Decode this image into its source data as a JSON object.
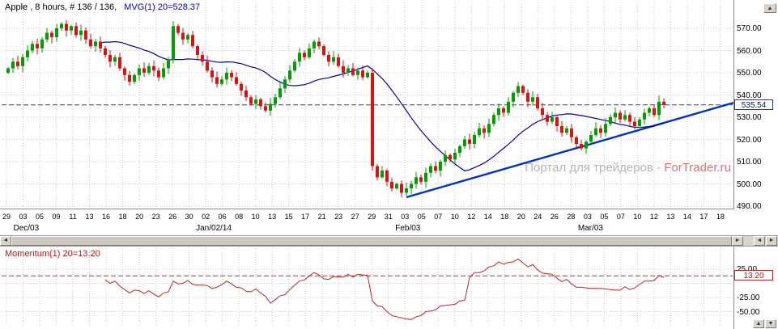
{
  "header": {
    "symbol_info": "Apple , 8 hours, # 136 / 136,",
    "ma_label": "MVG(1) 20=528.37"
  },
  "watermark": {
    "prefix": "Портал для трейдеров - ",
    "brand": "ForTrader.ru"
  },
  "price_panel": {
    "last_price_tag": "535.54",
    "axis_labels": [
      "570.00",
      "560.00",
      "550.00",
      "540.00",
      "530.00",
      "520.00",
      "510.00",
      "500.00",
      "490.00"
    ]
  },
  "momentum_panel": {
    "indicator_label": "Momentum(1) 20=13.20",
    "value_tag": "13.20",
    "axis_labels": [
      "25.00",
      "-25.00",
      "-50.00"
    ]
  },
  "scrollbar": {
    "left_arrow": "◄",
    "right_arrow": "►",
    "aux_left": "◄",
    "aux_right": "►"
  },
  "corner_buttons": {
    "top": "▲",
    "bottom_up": "▲",
    "bottom_down": "▼"
  },
  "chart_data": {
    "type": "candlestick",
    "title": "Apple, 8 hours, 136 bars",
    "last_price": 535.54,
    "first_open": 550,
    "closes": [
      552,
      555,
      553,
      557,
      560,
      563,
      561,
      565,
      568,
      566,
      570,
      572,
      569,
      571,
      567,
      569,
      565,
      562,
      564,
      561,
      558,
      555,
      557,
      552,
      549,
      546,
      549,
      552,
      550,
      553,
      551,
      548,
      552,
      556,
      571,
      568,
      565,
      567,
      562,
      558,
      555,
      551,
      548,
      545,
      547,
      550,
      548,
      545,
      542,
      539,
      536,
      538,
      535,
      533,
      536,
      539,
      543,
      547,
      551,
      555,
      559,
      557,
      561,
      564,
      562,
      558,
      555,
      557,
      553,
      550,
      552,
      549,
      551,
      548,
      550,
      508,
      503,
      506,
      501,
      498,
      500,
      496,
      498,
      500,
      503,
      501,
      505,
      508,
      506,
      510,
      513,
      511,
      514,
      517,
      520,
      518,
      522,
      525,
      523,
      527,
      531,
      534,
      532,
      537,
      541,
      544,
      541,
      537,
      539,
      534,
      531,
      528,
      530,
      526,
      523,
      525,
      521,
      518,
      516,
      519,
      522,
      525,
      523,
      527,
      530,
      532,
      529,
      531,
      528,
      526,
      529,
      532,
      534,
      531,
      537,
      535.54
    ],
    "indicators": [
      {
        "name": "MVG",
        "period": 20,
        "current": 528.37,
        "color": "#0000bb"
      },
      {
        "name": "Momentum",
        "period": 20,
        "current": 13.2,
        "color": "#cc2222"
      }
    ],
    "trendline": {
      "from_bar": 82,
      "from_price": 494,
      "right_edge_price": 536.5,
      "color": "#0033cc"
    },
    "price_axis": {
      "ticks": [
        570,
        560,
        550,
        540,
        530,
        520,
        510,
        500,
        490
      ],
      "range": [
        488,
        582
      ]
    },
    "momentum_axis": {
      "ticks": [
        25,
        -25,
        -50
      ],
      "grid": [
        25,
        0,
        -25,
        -50
      ],
      "range": [
        -78,
        64
      ]
    },
    "x_ticks": [
      "29",
      "03",
      "05",
      "09",
      "11",
      "13",
      "16",
      "18",
      "20",
      "23",
      "26",
      "30",
      "02",
      "06",
      "08",
      "10",
      "13",
      "15",
      "17",
      "21",
      "23",
      "27",
      "29",
      "31",
      "03",
      "05",
      "07",
      "10",
      "12",
      "14",
      "18",
      "20",
      "24",
      "26",
      "28",
      "03",
      "05",
      "07",
      "10",
      "12",
      "13",
      "14",
      "17",
      "18"
    ],
    "month_labels": [
      {
        "text": "Dec/03",
        "tick_index": 1
      },
      {
        "text": "Jan/02/14",
        "tick_index": 12
      },
      {
        "text": "Feb/03",
        "tick_index": 24
      },
      {
        "text": "Mar/03",
        "tick_index": 35
      }
    ],
    "colors": {
      "up": "#00a000",
      "down": "#dd1111",
      "grid": "#c9c9c9",
      "dashed_price": "#3333bb",
      "dashed_momentum": "#dd2222"
    }
  }
}
